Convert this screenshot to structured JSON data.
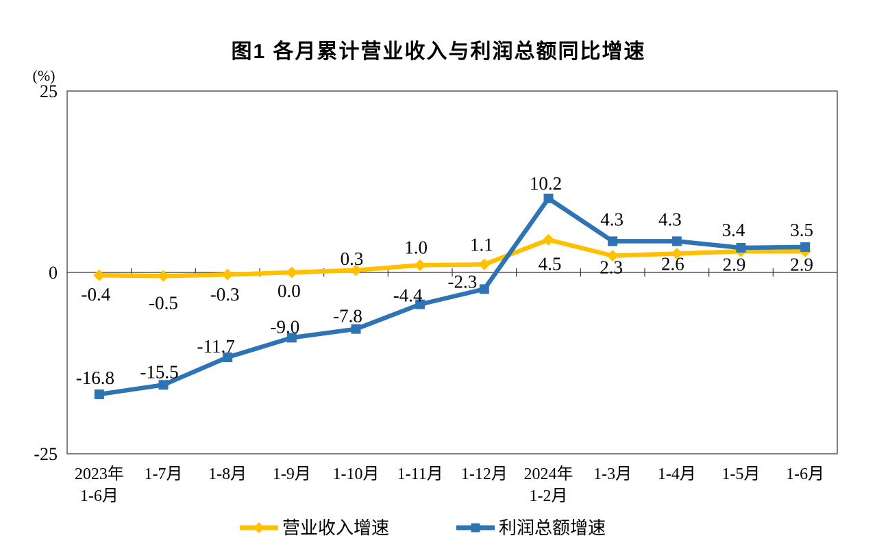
{
  "chart_data": {
    "type": "line",
    "title": "图1  各月累计营业收入与利润总额同比增速",
    "categories": [
      [
        "2023年",
        "1-6月"
      ],
      [
        "1-7月"
      ],
      [
        "1-8月"
      ],
      [
        "1-9月"
      ],
      [
        "1-10月"
      ],
      [
        "1-11月"
      ],
      [
        "1-12月"
      ],
      [
        "2024年",
        "1-2月"
      ],
      [
        "1-3月"
      ],
      [
        "1-4月"
      ],
      [
        "1-5月"
      ],
      [
        "1-6月"
      ]
    ],
    "series": [
      {
        "name": "营业收入增速",
        "color": "#FFC000",
        "marker": "diamond",
        "values": [
          -0.4,
          -0.5,
          -0.3,
          0.0,
          0.3,
          1.0,
          1.1,
          4.5,
          2.3,
          2.6,
          2.9,
          2.9
        ]
      },
      {
        "name": "利润总额增速",
        "color": "#2E74B5",
        "marker": "square",
        "values": [
          -16.8,
          -15.5,
          -11.7,
          -9.0,
          -7.8,
          -4.4,
          -2.3,
          10.2,
          4.3,
          4.3,
          3.4,
          3.5
        ]
      }
    ],
    "y_axis": {
      "unit": "(%)",
      "ticks": [
        25,
        0,
        -25
      ],
      "min": -25,
      "max": 25
    },
    "grid": false,
    "legend_position": "bottom",
    "axis_color": "#595959",
    "zero_line_color": "#333333",
    "label_color": "#000000"
  }
}
